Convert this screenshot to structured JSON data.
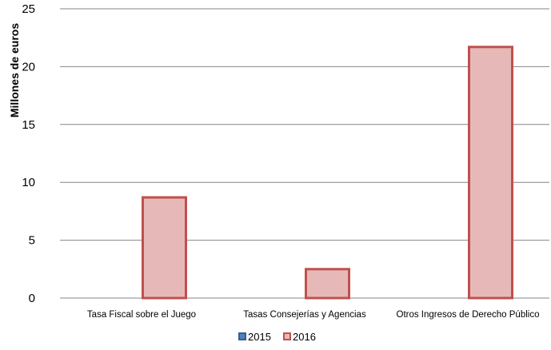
{
  "chart_data": {
    "type": "bar",
    "title": "",
    "xlabel": "",
    "ylabel": "Millones de euros",
    "ylim": [
      0,
      25
    ],
    "yticks": [
      0,
      5,
      10,
      15,
      20,
      25
    ],
    "grid": true,
    "legend_position": "bottom",
    "categories": [
      "Tasa Fiscal sobre el Juego",
      "Tasas Consejerías y Agencias",
      "Otros Ingresos de Derecho Público"
    ],
    "series": [
      {
        "name": "2015",
        "values": [
          0,
          0,
          0
        ],
        "fill": "#4F81BD",
        "stroke": "#385D8A"
      },
      {
        "name": "2016",
        "values": [
          8.7,
          2.5,
          21.7
        ],
        "fill": "#E6B9B8",
        "stroke": "#C0504D"
      }
    ]
  }
}
